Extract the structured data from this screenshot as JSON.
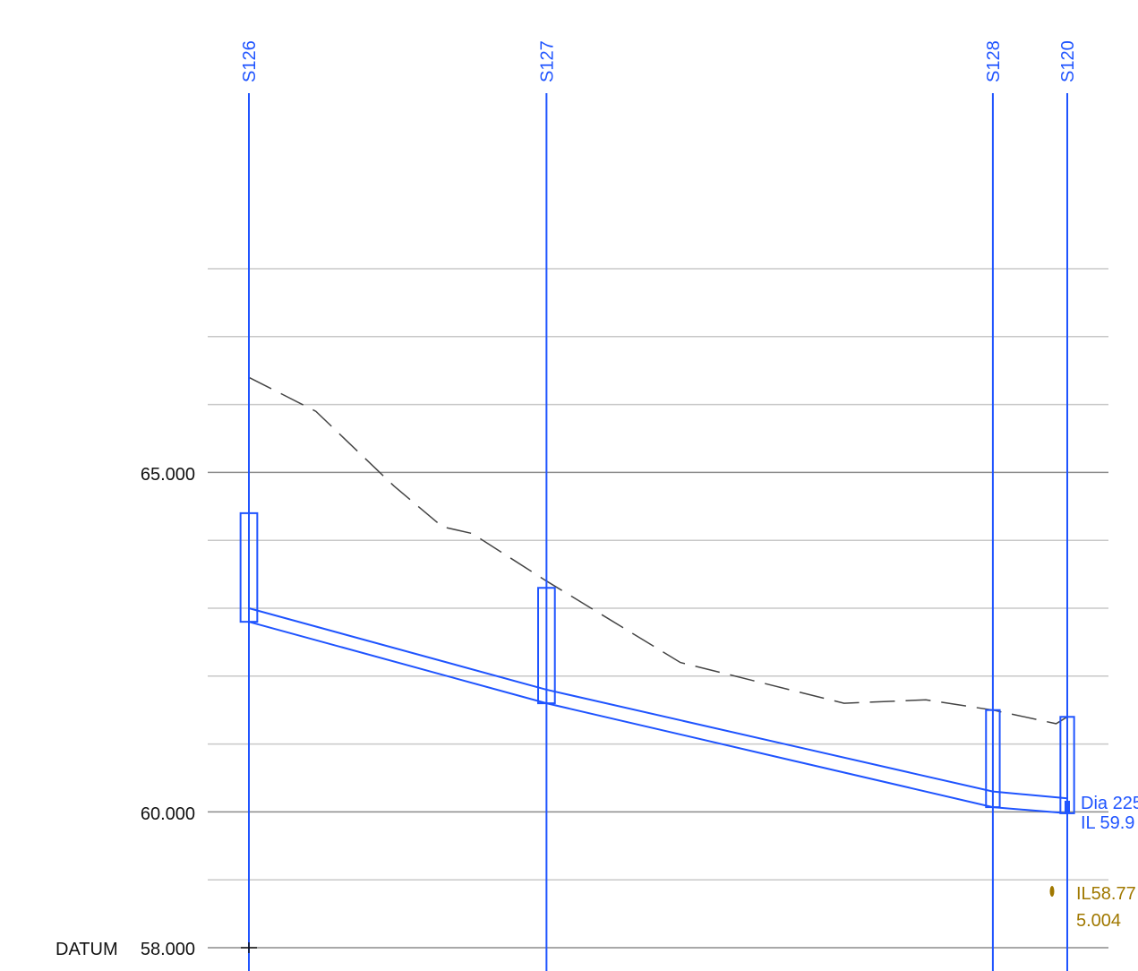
{
  "chart_data": {
    "type": "line",
    "description_words": "drainage longitudinal section",
    "ylim": [
      58.0,
      68.0
    ],
    "y_ticks_labeled": [
      {
        "value": 65.0,
        "label": "65.000"
      },
      {
        "value": 60.0,
        "label": "60.000"
      }
    ],
    "y_minor_lines": [
      59.0,
      61.0,
      62.0,
      63.0,
      64.0,
      66.0,
      67.0,
      68.0
    ],
    "datum": {
      "label": "DATUM",
      "value_label": "58.000",
      "value": 58.0
    },
    "chainage_max": 110.0,
    "nodes": [
      {
        "name": "S126",
        "chainage": 0.0,
        "invert": 62.8,
        "cover": 64.4,
        "width": 1.1
      },
      {
        "name": "S127",
        "chainage": 40.0,
        "invert": 61.6,
        "cover": 63.3,
        "width": 1.1
      },
      {
        "name": "S128",
        "chainage": 100.0,
        "invert": 60.07,
        "cover": 61.5,
        "width": 0.9
      },
      {
        "name": "S120",
        "chainage": 110.0,
        "invert": 59.98,
        "cover": 61.4,
        "width": 0.9
      }
    ],
    "pipe_segments": [
      {
        "from_chainage": 0.0,
        "to_chainage": 40.0,
        "invert_start": 62.8,
        "invert_end": 61.6,
        "soffit_start": 63.0,
        "soffit_end": 61.8
      },
      {
        "from_chainage": 40.0,
        "to_chainage": 100.0,
        "invert_start": 61.6,
        "invert_end": 60.07,
        "soffit_start": 61.8,
        "soffit_end": 60.3
      },
      {
        "from_chainage": 100.0,
        "to_chainage": 110.0,
        "invert_start": 60.07,
        "invert_end": 59.98,
        "soffit_start": 60.3,
        "soffit_end": 60.2
      }
    ],
    "ground_level": [
      {
        "chainage": 0.0,
        "level": 66.4
      },
      {
        "chainage": 9.0,
        "level": 65.9
      },
      {
        "chainage": 19.5,
        "level": 64.8
      },
      {
        "chainage": 26.0,
        "level": 64.2
      },
      {
        "chainage": 30.0,
        "level": 64.1
      },
      {
        "chainage": 40.0,
        "level": 63.4
      },
      {
        "chainage": 58.0,
        "level": 62.2
      },
      {
        "chainage": 80.0,
        "level": 61.6
      },
      {
        "chainage": 91.0,
        "level": 61.65
      },
      {
        "chainage": 100.0,
        "level": 61.5
      },
      {
        "chainage": 108.5,
        "level": 61.3
      },
      {
        "chainage": 110.0,
        "level": 61.4
      }
    ],
    "labels": {
      "pipe_dia": "Dia 225",
      "pipe_il": "IL 59.9",
      "gold_il": "IL58.77",
      "gold_value": "5.004"
    },
    "colors": {
      "network": "#1f54ff",
      "ground": "#444444",
      "secondary": "#a07800",
      "grid_minor": "#c8c8c8",
      "grid_major": "#8c8c8c"
    }
  }
}
